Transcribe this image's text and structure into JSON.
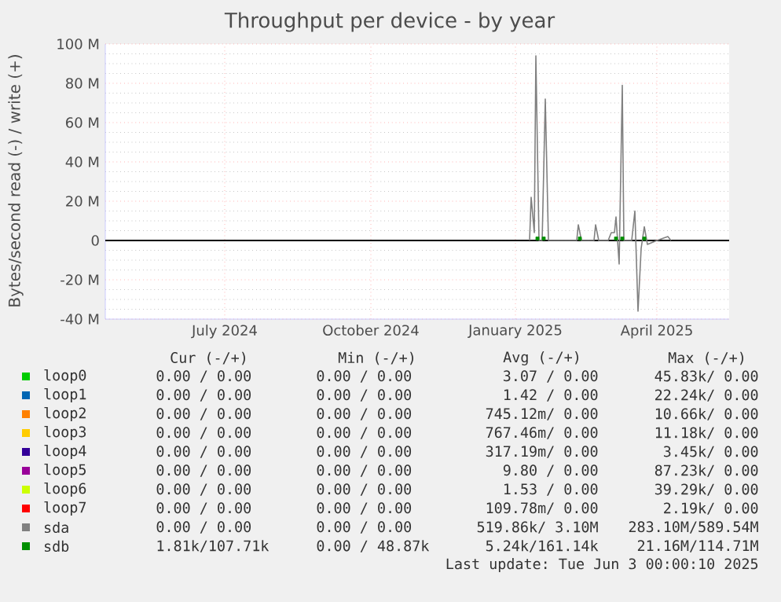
{
  "chart_data": {
    "type": "line",
    "title": "Throughput per device - by year",
    "ylabel": "Bytes/second read (-) / write (+)",
    "xlim": [
      "2024-05-02",
      "2025-06-03"
    ],
    "xticks": [
      {
        "value": "2024-07-17",
        "label": "July 2024"
      },
      {
        "value": "2024-10-18",
        "label": "October 2024"
      },
      {
        "value": "2025-01-18",
        "label": "January 2025"
      },
      {
        "value": "2025-04-18",
        "label": "April 2025"
      }
    ],
    "ylim": [
      -40,
      100
    ],
    "yticks": [
      {
        "value": -40,
        "label": "-40 M"
      },
      {
        "value": -20,
        "label": "-20 M"
      },
      {
        "value": 0,
        "label": "0"
      },
      {
        "value": 20,
        "label": "20 M"
      },
      {
        "value": 40,
        "label": "40 M"
      },
      {
        "value": 60,
        "label": "60 M"
      },
      {
        "value": 80,
        "label": "80 M"
      },
      {
        "value": 100,
        "label": "100 M"
      }
    ],
    "grid": true,
    "legend": "bottom",
    "ref_lines": [
      {
        "axis": "y",
        "value": 0,
        "color": "#000000"
      }
    ],
    "series": [
      {
        "name": "loop0",
        "color": "#00cc00"
      },
      {
        "name": "loop1",
        "color": "#0066b3"
      },
      {
        "name": "loop2",
        "color": "#ff8000"
      },
      {
        "name": "loop3",
        "color": "#ffcc00"
      },
      {
        "name": "loop4",
        "color": "#330099"
      },
      {
        "name": "loop5",
        "color": "#990099"
      },
      {
        "name": "loop6",
        "color": "#ccff00"
      },
      {
        "name": "loop7",
        "color": "#ff0000"
      },
      {
        "name": "sda",
        "color": "#808080",
        "x": [
          "2025-01-27",
          "2025-01-28",
          "2025-01-30",
          "2025-01-31",
          "2025-02-02",
          "2025-02-04",
          "2025-02-06",
          "2025-02-08",
          "2025-02-26",
          "2025-02-27",
          "2025-03-01",
          "2025-03-09",
          "2025-03-10",
          "2025-03-12",
          "2025-03-18",
          "2025-03-20",
          "2025-03-22",
          "2025-03-23",
          "2025-03-25",
          "2025-03-27",
          "2025-03-28",
          "2025-04-02",
          "2025-04-04",
          "2025-04-06",
          "2025-04-08",
          "2025-04-10",
          "2025-04-12",
          "2025-04-15",
          "2025-04-18",
          "2025-04-25",
          "2025-04-27"
        ],
        "values": [
          0,
          22,
          4,
          94,
          0,
          0,
          72,
          0,
          0,
          8,
          0,
          0,
          8,
          0,
          0,
          4,
          4,
          12,
          -12,
          79,
          0,
          0,
          15,
          -36,
          -4,
          7,
          -2,
          -1,
          0,
          2,
          0
        ]
      },
      {
        "name": "sdb",
        "color": "#008f00",
        "type": "scatter",
        "x": [
          "2025-02-01",
          "2025-02-05",
          "2025-02-28",
          "2025-03-23",
          "2025-03-27",
          "2025-04-10"
        ],
        "values": [
          1,
          1,
          1,
          1,
          1,
          1
        ]
      }
    ],
    "annotations": [
      "Cur (-/+)",
      "Min (-/+)",
      "Avg (-/+)",
      "Max (-/+)",
      "0.00 /  0.00",
      "0.00 /  0.00",
      "3.07 /  0.00",
      "45.83k/  0.00",
      "0.00 /  0.00",
      "0.00 /  0.00",
      "1.42 /  0.00",
      "22.24k/  0.00",
      "0.00 /  0.00",
      "0.00 /  0.00",
      "745.12m/  0.00",
      "10.66k/  0.00",
      "0.00 /  0.00",
      "0.00 /  0.00",
      "767.46m/  0.00",
      "11.18k/  0.00",
      "0.00 /  0.00",
      "0.00 /  0.00",
      "317.19m/  0.00",
      "3.45k/  0.00",
      "0.00 /  0.00",
      "0.00 /  0.00",
      "9.80 /  0.00",
      "87.23k/  0.00",
      "0.00 /  0.00",
      "0.00 /  0.00",
      "1.53 /  0.00",
      "39.29k/  0.00",
      "0.00 /  0.00",
      "0.00 /  0.00",
      "109.78m/  0.00",
      "2.19k/  0.00",
      "0.00 /  0.00",
      "0.00 /  0.00",
      "519.86k/  3.10M",
      "283.10M/589.54M",
      "1.81k/107.71k",
      "0.00 / 48.87k",
      "5.24k/161.14k",
      "21.16M/114.71M",
      "Last update: Tue Jun  3 00:00:10 2025"
    ]
  }
}
